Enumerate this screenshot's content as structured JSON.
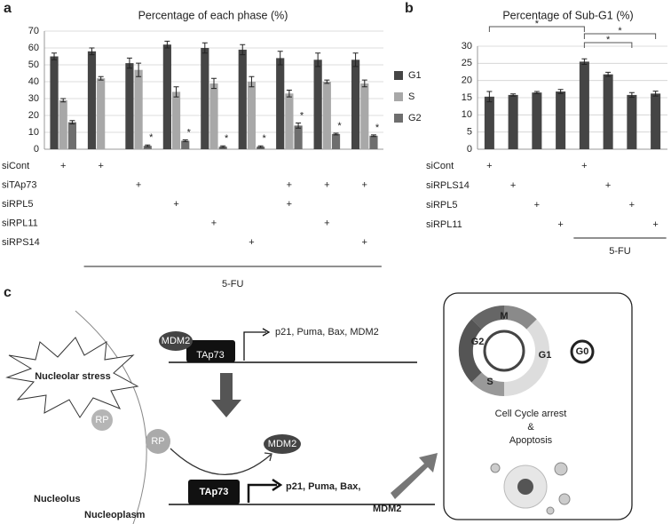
{
  "panels": [
    "a",
    "b",
    "c"
  ],
  "chart_data": [
    {
      "type": "bar",
      "title": "Percentage of each phase (%)",
      "categories": [
        null,
        null,
        null,
        null,
        null,
        null,
        null,
        null,
        null
      ],
      "series": [
        {
          "name": "G1",
          "color": "#454545",
          "values": [
            55,
            58,
            51,
            62,
            60,
            59,
            54,
            53,
            53
          ],
          "errors": [
            2,
            2,
            3,
            2,
            3,
            3,
            4,
            4,
            4
          ]
        },
        {
          "name": "S",
          "color": "#a8a8a8",
          "values": [
            29,
            42,
            47,
            34,
            39,
            40,
            33,
            40,
            39
          ],
          "errors": [
            1,
            1,
            4,
            3,
            3,
            3,
            2,
            1,
            2
          ]
        },
        {
          "name": "G2",
          "color": "#6e6e6e",
          "values": [
            16,
            null,
            2,
            5,
            1.5,
            1.5,
            14,
            9,
            8
          ],
          "errors": [
            1,
            null,
            0.5,
            0.5,
            0.5,
            0.5,
            1.5,
            0.5,
            0.5
          ],
          "significance_labels": [
            null,
            null,
            "*",
            "*",
            "*",
            "*",
            "*",
            "*",
            "*"
          ]
        }
      ],
      "ylim": [
        0,
        70
      ],
      "yticks": [
        0,
        10,
        20,
        30,
        40,
        50,
        60,
        70
      ],
      "grid": true,
      "legend": "right",
      "conditions": [
        {
          "name": "siCont",
          "marks": [
            "+",
            "+",
            null,
            null,
            null,
            null,
            null,
            null,
            null
          ]
        },
        {
          "name": "siTAp73",
          "marks": [
            null,
            null,
            "+",
            null,
            null,
            null,
            "+",
            "+",
            "+"
          ]
        },
        {
          "name": "siRPL5",
          "marks": [
            null,
            null,
            null,
            "+",
            null,
            null,
            "+",
            null,
            null
          ]
        },
        {
          "name": "siRPL11",
          "marks": [
            null,
            null,
            null,
            null,
            "+",
            null,
            null,
            "+",
            null
          ]
        },
        {
          "name": "siRPS14",
          "marks": [
            null,
            null,
            null,
            null,
            null,
            "+",
            null,
            null,
            "+"
          ]
        }
      ],
      "treatment_label": "5-FU"
    },
    {
      "type": "bar",
      "title": "Percentage of Sub-G1 (%)",
      "categories": [
        null,
        null,
        null,
        null,
        null,
        null,
        null,
        null
      ],
      "values": [
        15.3,
        15.8,
        16.5,
        16.8,
        25.5,
        21.8,
        15.8,
        16.2
      ],
      "errors": [
        1.5,
        0.3,
        0.3,
        0.6,
        0.8,
        0.6,
        0.7,
        0.7
      ],
      "color": "#454545",
      "ylim": [
        0,
        30
      ],
      "yticks": [
        0,
        5,
        10,
        15,
        20,
        25,
        30
      ],
      "grid": true,
      "comparison_labels": [
        "*",
        "*",
        "*"
      ],
      "conditions": [
        {
          "name": "siCont",
          "marks": [
            "+",
            null,
            null,
            null,
            "+",
            null,
            null,
            null
          ]
        },
        {
          "name": "siRPLS14",
          "marks": [
            null,
            "+",
            null,
            null,
            null,
            "+",
            null,
            null
          ]
        },
        {
          "name": "siRPL5",
          "marks": [
            null,
            null,
            "+",
            null,
            null,
            null,
            "+",
            null
          ]
        },
        {
          "name": "siRPL11",
          "marks": [
            null,
            null,
            null,
            "+",
            null,
            null,
            null,
            "+"
          ]
        }
      ],
      "treatment_label": "5-FU"
    }
  ],
  "diagram": {
    "top_mdm2": "MDM2",
    "top_tap73": "TAp73",
    "top_targets": "p21, Puma, Bax, MDM2",
    "stress": "Nucleolar stress",
    "rp_free": "RP",
    "rp_bound": "RP",
    "mdm2_released": "MDM2",
    "active_tap73": "TAp73",
    "active_targets": [
      "p21, Puma, Bax,",
      "MDM2"
    ],
    "nucleolus": "Nucleolus",
    "nucleoplasm": "Nucleoplasm",
    "cycle": {
      "M": "M",
      "G2": "G2",
      "S": "S",
      "G1": "G1",
      "G0": "G0"
    },
    "outcome": [
      "Cell Cycle arrest",
      "&",
      "Apoptosis"
    ]
  }
}
